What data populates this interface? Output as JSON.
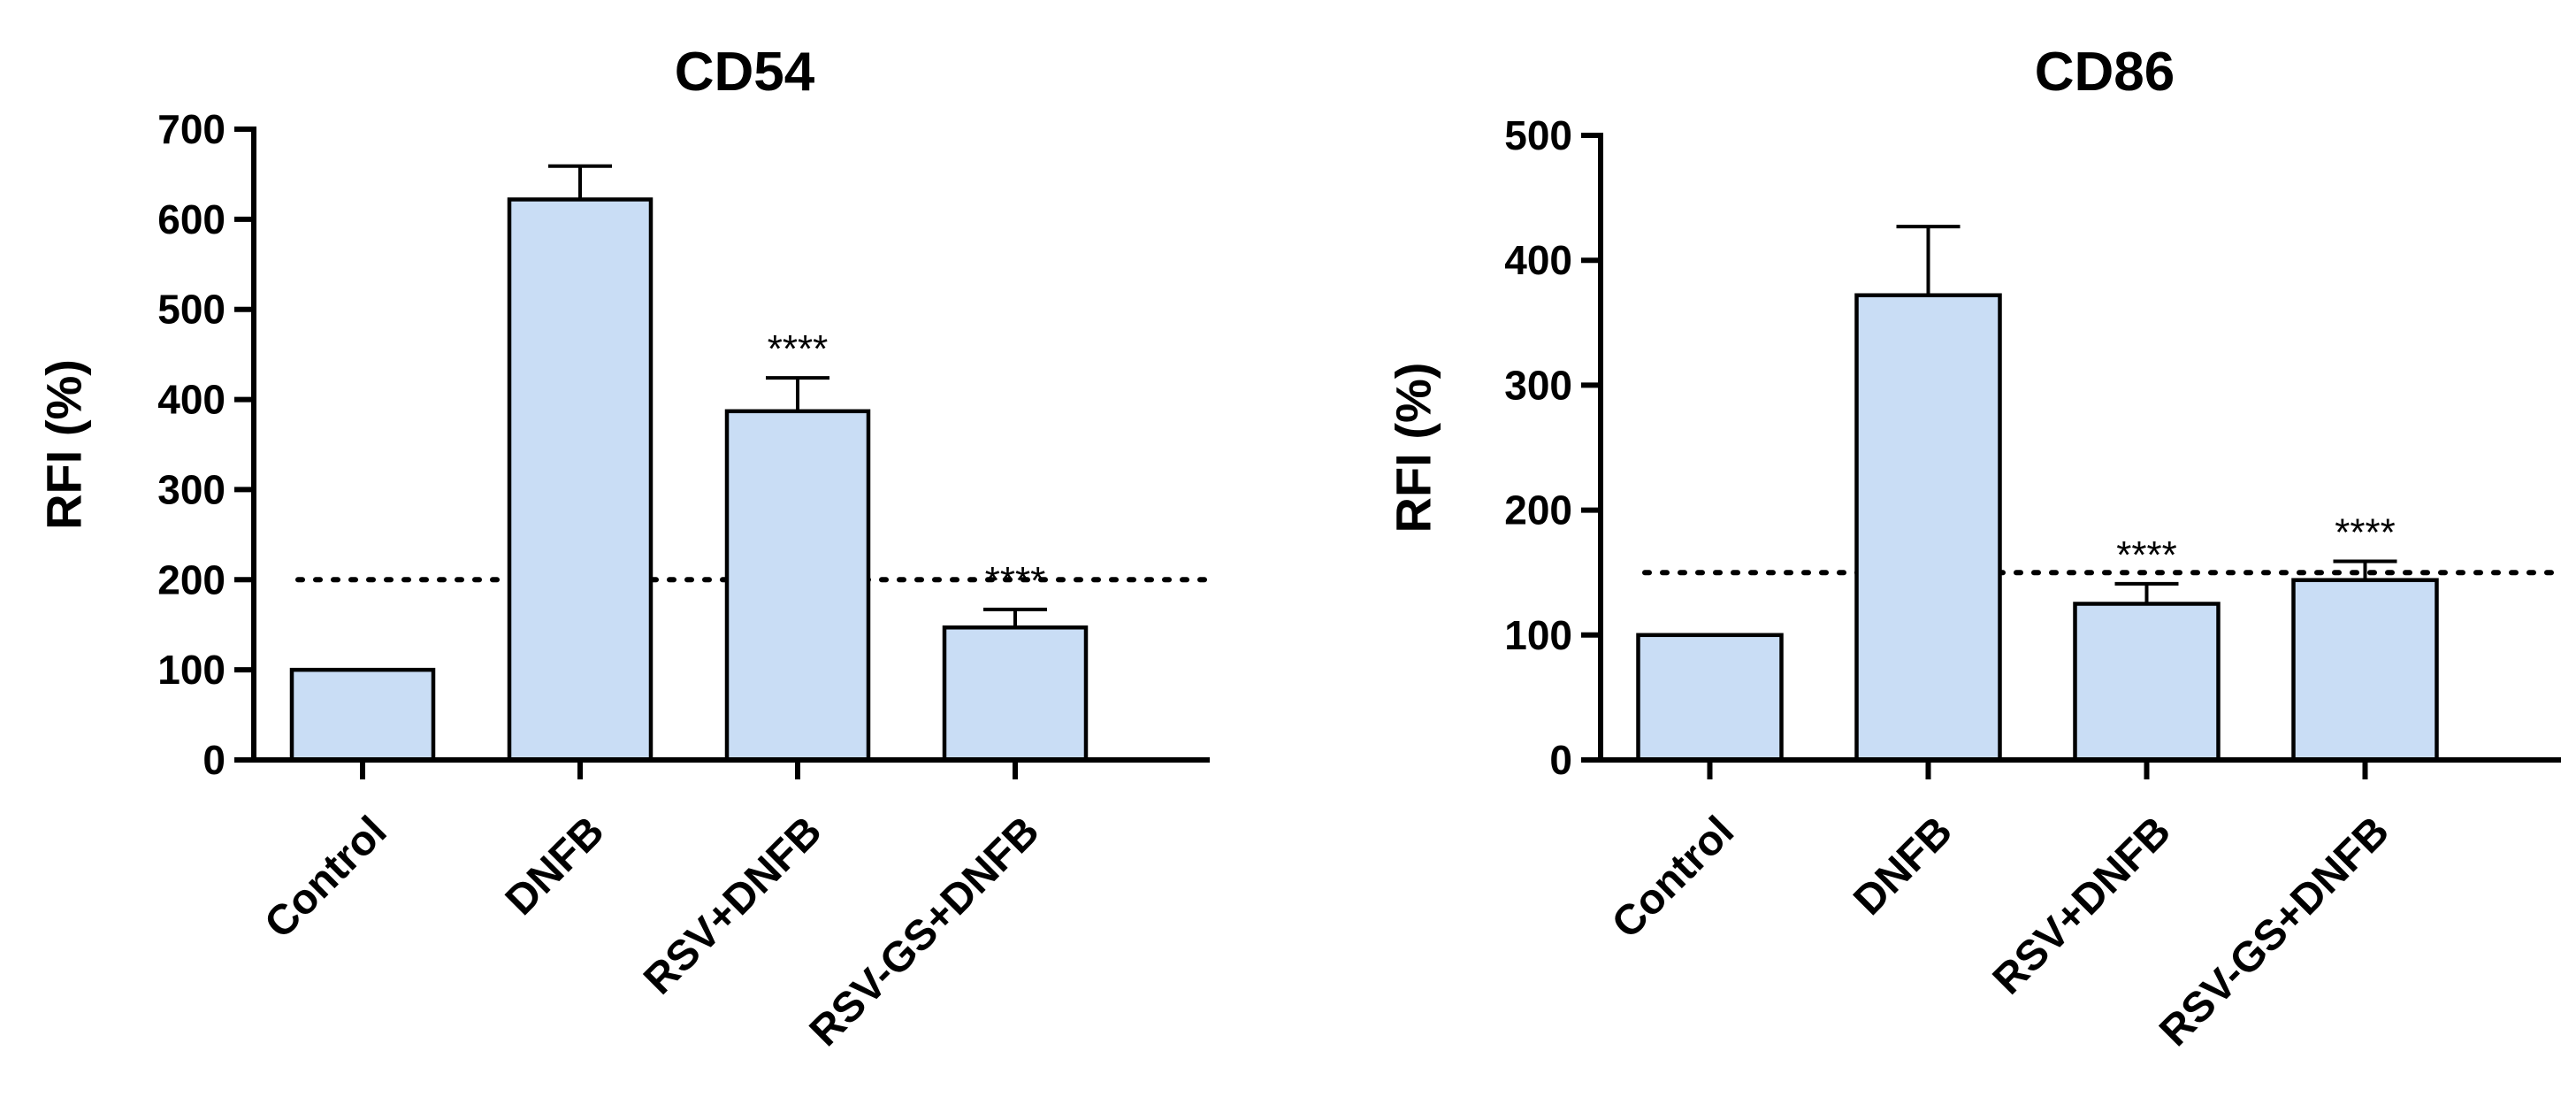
{
  "chart_data": [
    {
      "type": "bar",
      "title": "CD54",
      "ylabel": "RFI (%)",
      "xlabel": "",
      "categories": [
        "Control",
        "DNFB",
        "RSV+DNFB",
        "RSV-GS+DNFB"
      ],
      "values": [
        100,
        622,
        387,
        147
      ],
      "errors": [
        0,
        37,
        37,
        20
      ],
      "annotations": [
        "",
        "",
        "****",
        "****"
      ],
      "ylim": [
        0,
        700
      ],
      "yticks": [
        0,
        100,
        200,
        300,
        400,
        500,
        600,
        700
      ],
      "reference_line": 200,
      "grid": false,
      "bar_color": "#c9ddf5"
    },
    {
      "type": "bar",
      "title": "CD86",
      "ylabel": "RFI (%)",
      "xlabel": "",
      "categories": [
        "Control",
        "DNFB",
        "RSV+DNFB",
        "RSV-GS+DNFB"
      ],
      "values": [
        100,
        372,
        125,
        144
      ],
      "errors": [
        0,
        55,
        16,
        15
      ],
      "annotations": [
        "",
        "",
        "****",
        "****"
      ],
      "ylim": [
        0,
        500
      ],
      "yticks": [
        0,
        100,
        200,
        300,
        400,
        500
      ],
      "reference_line": 150,
      "grid": false,
      "bar_color": "#c9ddf5"
    }
  ]
}
